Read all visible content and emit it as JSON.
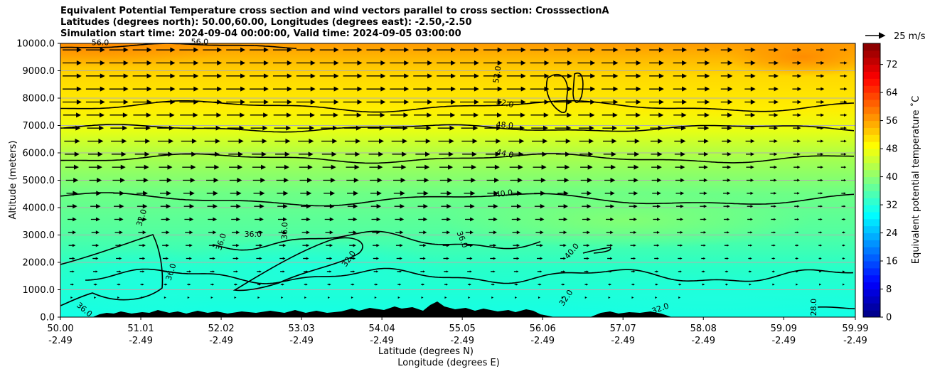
{
  "chart_data": {
    "type": "contour",
    "title_lines": [
      "Equivalent Potential Temperature cross section and wind vectors parallel to cross section: CrosssectionA",
      "Latitudes (degrees north): 50.00,60.00, Longitudes (degrees east): -2.50,-2.50",
      "Simulation start time: 2024-09-04 00:00:00, Valid time: 2024-09-05 03:00:00"
    ],
    "xlabel_lines": [
      "Latitude (degrees N)",
      "Longitude (degrees E)"
    ],
    "ylabel": "Altitude (meters)",
    "x_ticks": [
      {
        "lat": "50.00",
        "lon": "-2.49",
        "v": 50.0
      },
      {
        "lat": "51.01",
        "lon": "-2.49",
        "v": 51.01
      },
      {
        "lat": "52.02",
        "lon": "-2.49",
        "v": 52.02
      },
      {
        "lat": "53.03",
        "lon": "-2.49",
        "v": 53.03
      },
      {
        "lat": "54.04",
        "lon": "-2.49",
        "v": 54.04
      },
      {
        "lat": "55.05",
        "lon": "-2.49",
        "v": 55.05
      },
      {
        "lat": "56.06",
        "lon": "-2.49",
        "v": 56.06
      },
      {
        "lat": "57.07",
        "lon": "-2.49",
        "v": 57.07
      },
      {
        "lat": "58.08",
        "lon": "-2.49",
        "v": 58.08
      },
      {
        "lat": "59.09",
        "lon": "-2.49",
        "v": 59.09
      },
      {
        "lat": "59.99",
        "lon": "-2.49",
        "v": 59.99
      }
    ],
    "y_ticks": [
      "0.0",
      "1000.0",
      "2000.0",
      "3000.0",
      "4000.0",
      "5000.0",
      "6000.0",
      "7000.0",
      "8000.0",
      "9000.0",
      "10000.0"
    ],
    "xlim": [
      50.0,
      59.99
    ],
    "ylim": [
      0,
      10000
    ],
    "colorbar": {
      "label": "Equivalent potential temperature $^\\circ$C",
      "label_display": "Equivalent potential temperature ˚C",
      "ticks": [
        "0",
        "8",
        "16",
        "24",
        "32",
        "40",
        "48",
        "56",
        "64",
        "72"
      ],
      "range": [
        0,
        78
      ]
    },
    "quiver_key_label": "25 m/s",
    "contour_levels": [
      {
        "label": "28.0",
        "sample_alt_m": 300
      },
      {
        "label": "32.0",
        "sample_alt_m": 1500
      },
      {
        "label": "36.0",
        "sample_alt_m": 2800
      },
      {
        "label": "40.0",
        "sample_alt_m": 4300
      },
      {
        "label": "44.0",
        "sample_alt_m": 5800
      },
      {
        "label": "48.0",
        "sample_alt_m": 6900
      },
      {
        "label": "52.0",
        "sample_alt_m": 7700
      },
      {
        "label": "56.0",
        "sample_alt_m": 9900
      }
    ],
    "contour_labels": [
      {
        "text": "52.0",
        "lat": 55.58,
        "alt": 7720,
        "rot": 12
      },
      {
        "text": "48.0",
        "lat": 55.58,
        "alt": 6920,
        "rot": 5
      },
      {
        "text": "44.0",
        "lat": 55.58,
        "alt": 5880,
        "rot": 12
      },
      {
        "text": "40.0",
        "lat": 55.58,
        "alt": 4420,
        "rot": -8
      },
      {
        "text": "36.0",
        "lat": 52.42,
        "alt": 2940,
        "rot": 0
      },
      {
        "text": "36.0",
        "lat": 52.05,
        "alt": 2720,
        "rot": -72
      },
      {
        "text": "32.0",
        "lat": 51.05,
        "alt": 3600,
        "rot": -72
      },
      {
        "text": "36.0",
        "lat": 51.42,
        "alt": 1620,
        "rot": -72
      },
      {
        "text": "36.0",
        "lat": 52.85,
        "alt": 3150,
        "rot": -88
      },
      {
        "text": "32.0",
        "lat": 53.65,
        "alt": 2080,
        "rot": -55
      },
      {
        "text": "36.0",
        "lat": 55.02,
        "alt": 2800,
        "rot": 68
      },
      {
        "text": "40.0",
        "lat": 56.45,
        "alt": 2350,
        "rot": -50
      },
      {
        "text": "32.0",
        "lat": 56.38,
        "alt": 650,
        "rot": -55
      },
      {
        "text": "28.0",
        "lat": 59.5,
        "alt": 360,
        "rot": -90
      },
      {
        "text": "36.0",
        "lat": 50.28,
        "alt": 200,
        "rot": 40
      },
      {
        "text": "32.0",
        "lat": 57.55,
        "alt": 230,
        "rot": -20
      },
      {
        "text": "56.0",
        "lat": 50.5,
        "alt": 9930,
        "rot": 0
      },
      {
        "text": "56.0",
        "lat": 51.75,
        "alt": 9960,
        "rot": 0
      },
      {
        "text": "52.0",
        "lat": 55.52,
        "alt": 8850,
        "rot": -82
      }
    ],
    "wind_vectors": {
      "direction": "parallel to cross section, toward increasing latitude",
      "speed_range_m_s": [
        2,
        28
      ],
      "columns": 34,
      "rows": 21
    }
  }
}
